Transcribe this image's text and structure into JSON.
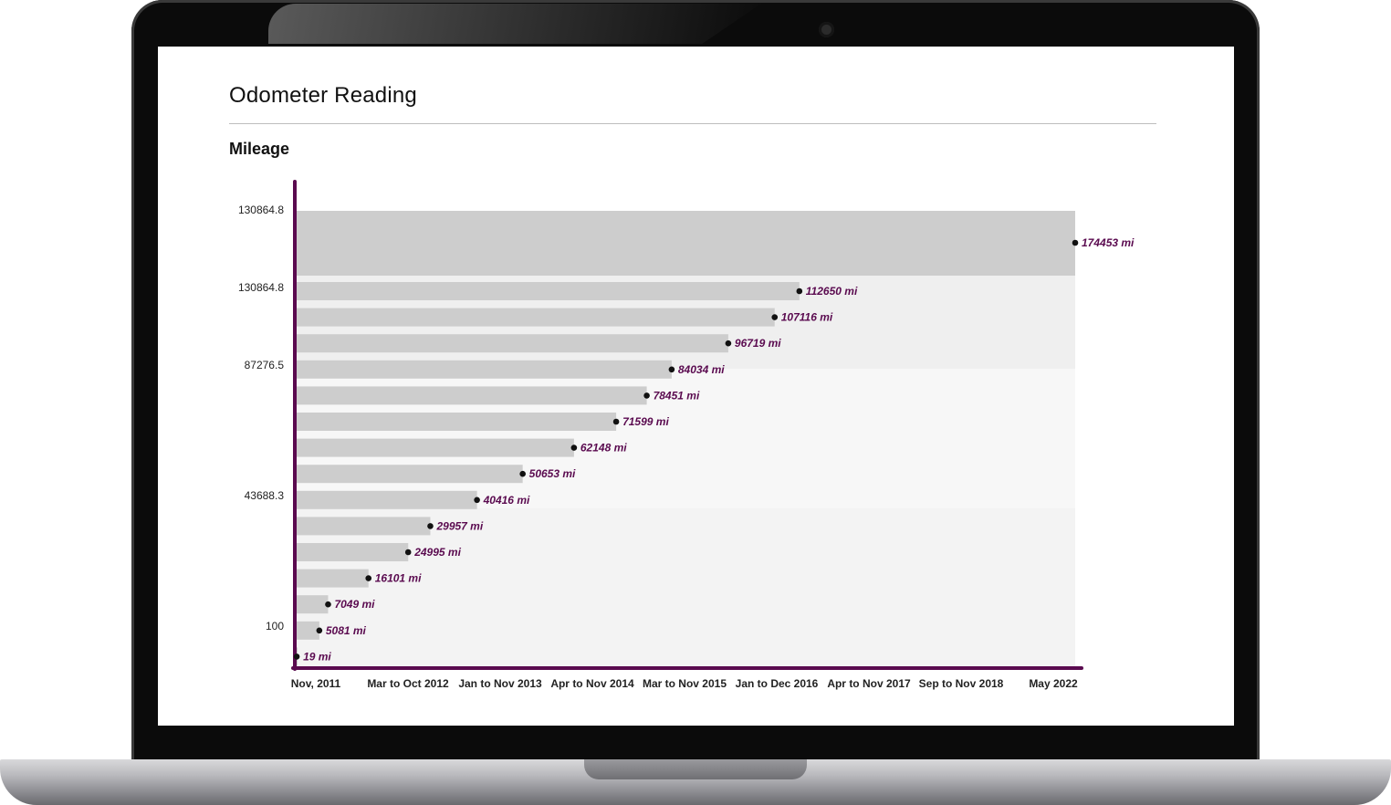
{
  "header": {
    "title": "Odometer Reading",
    "section_title": "Mileage"
  },
  "colors": {
    "axis": "#5a0a4f",
    "bar": "#cdcdcd",
    "band_dark": "#cdcdcd",
    "band_mid": "#efefef",
    "band_light": "#f7f7f7",
    "band_low": "#f3f3f3",
    "dot": "#111111",
    "label": "#5a0a4f",
    "laptop_frame": "#0b0b0b"
  },
  "chart_data": {
    "type": "bar",
    "orientation": "horizontal",
    "title": "Mileage",
    "unit": "mi",
    "y_tick_labels": [
      "130864.8",
      "130864.8",
      "87276.5",
      "43688.3",
      "100"
    ],
    "x_tick_labels": [
      "Nov, 2011",
      "Mar to Oct 2012",
      "Jan to Nov 2013",
      "Apr to Nov 2014",
      "Mar to Nov 2015",
      "Jan to Dec 2016",
      "Apr to Nov 2017",
      "Sep to Nov 2018",
      "May 2022"
    ],
    "values": [
      174453,
      112650,
      107116,
      96719,
      84034,
      78451,
      71599,
      62148,
      50653,
      40416,
      29957,
      24995,
      16101,
      7049,
      5081,
      19
    ],
    "data_labels": [
      "174453 mi",
      "112650 mi",
      "107116 mi",
      "96719 mi",
      "84034 mi",
      "78451 mi",
      "71599 mi",
      "62148 mi",
      "50653 mi",
      "40416 mi",
      "29957 mi",
      "24995 mi",
      "16101 mi",
      "7049 mi",
      "5081 mi",
      "19 mi"
    ],
    "xlim": [
      0,
      174453
    ],
    "grid": false,
    "legend": "none"
  }
}
